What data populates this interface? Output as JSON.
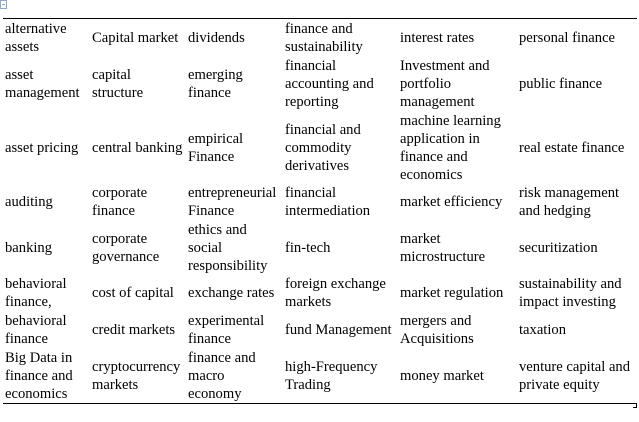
{
  "table": {
    "rows": [
      [
        "alternative assets",
        "Capital market",
        "dividends",
        "finance and sustainability",
        "interest rates",
        "personal finance"
      ],
      [
        "asset management",
        "capital structure",
        "emerging finance",
        "financial accounting and reporting",
        "Investment and portfolio management",
        "public finance"
      ],
      [
        "asset pricing",
        "central banking",
        "empirical Finance",
        "financial and commodity derivatives",
        "machine learning application in finance and economics",
        "real estate finance"
      ],
      [
        "auditing",
        "corporate finance",
        "entrepreneurial Finance",
        "financial intermediation",
        "market efficiency",
        "risk management and hedging"
      ],
      [
        "banking",
        "corporate governance",
        "ethics and social responsibility",
        "fin-tech",
        "market microstructure",
        "securitization"
      ],
      [
        "behavioral finance,",
        "cost of capital",
        "exchange rates",
        "foreign exchange markets",
        "market regulation",
        "sustainability and impact investing"
      ],
      [
        "behavioral finance",
        "credit markets",
        "experimental finance",
        "fund Management",
        "mergers and Acquisitions",
        "taxation"
      ],
      [
        "Big Data in finance and economics",
        "cryptocurrency markets",
        "finance and macro economy",
        "high-Frequency Trading",
        "money market",
        "venture capital and private equity"
      ]
    ]
  }
}
